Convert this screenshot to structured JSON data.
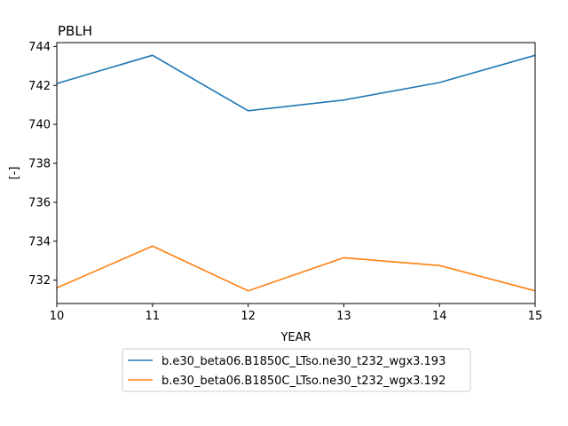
{
  "chart_data": {
    "type": "line",
    "title": "PBLH",
    "xlabel": "YEAR",
    "ylabel": "[-]",
    "x": [
      10,
      11,
      12,
      13,
      14,
      15
    ],
    "xlim": [
      10,
      15
    ],
    "ylim": [
      730.8,
      744.2
    ],
    "xticks": [
      "10",
      "11",
      "12",
      "13",
      "14",
      "15"
    ],
    "yticks": [
      "732",
      "734",
      "736",
      "738",
      "740",
      "742",
      "744"
    ],
    "grid": false,
    "legend_position": "below",
    "series": [
      {
        "name": "b.e30_beta06.B1850C_LTso.ne30_t232_wgx3.193",
        "color": "#1f77b4",
        "values": [
          742.1,
          743.55,
          740.7,
          741.25,
          742.15,
          743.55
        ]
      },
      {
        "name": "b.e30_beta06.B1850C_LTso.ne30_t232_wgx3.192",
        "color": "#ff7f0e",
        "values": [
          731.6,
          733.75,
          731.45,
          733.15,
          732.75,
          731.45
        ]
      }
    ]
  }
}
